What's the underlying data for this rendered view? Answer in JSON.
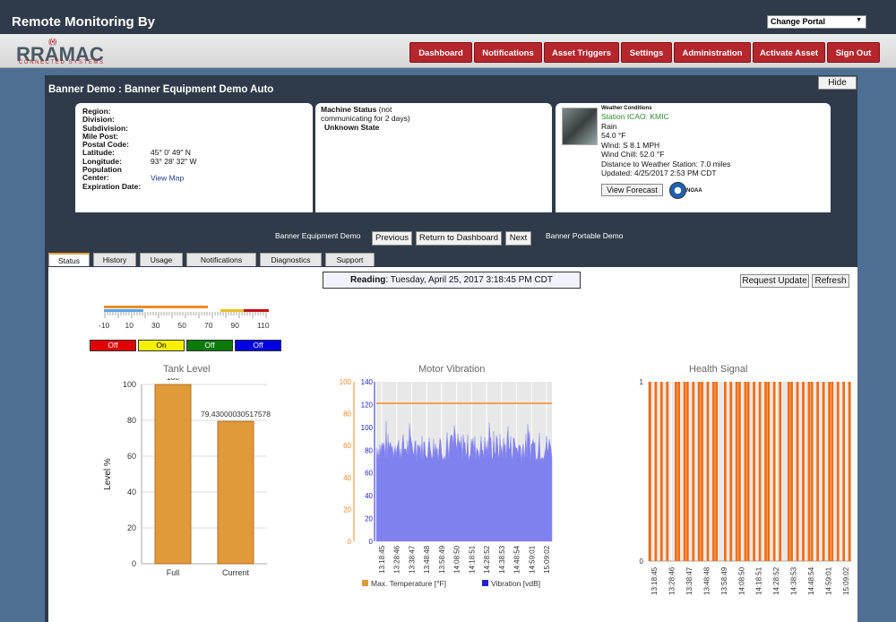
{
  "header": {
    "title": "Remote Monitoring By",
    "portal_select": "Change Portal"
  },
  "logo": {
    "name": "RRAMAC",
    "tagline": "CONNECTED SYSTEMS"
  },
  "nav": [
    {
      "label": "Dashboard"
    },
    {
      "label": "Notifications"
    },
    {
      "label": "Asset Triggers"
    },
    {
      "label": "Settings"
    },
    {
      "label": "Administration"
    },
    {
      "label": "Activate Asset"
    },
    {
      "label": "Sign Out"
    }
  ],
  "page": {
    "title": "Banner Demo : Banner Equipment Demo Auto",
    "hide": "Hide"
  },
  "location": {
    "fields": [
      {
        "label": "Region:",
        "value": ""
      },
      {
        "label": "Division:",
        "value": ""
      },
      {
        "label": "Subdivision:",
        "value": ""
      },
      {
        "label": "Mile Post:",
        "value": ""
      },
      {
        "label": "Postal Code:",
        "value": ""
      },
      {
        "label": "Latitude:",
        "value": "45° 0' 49\" N"
      },
      {
        "label": "Longitude:",
        "value": "93° 28' 32\" W"
      },
      {
        "label": "Population Center:",
        "value": "View Map"
      },
      {
        "label": "Expiration Date:",
        "value": ""
      }
    ]
  },
  "machine": {
    "label": "Machine Status",
    "note": "(not communicating for 2 days)",
    "state": "Unknown State"
  },
  "weather": {
    "heading": "Weather Conditions",
    "station": "Station ICAO: KMIC",
    "lines": [
      "Rain",
      "54.0 °F",
      "Wind: S 8.1 MPH",
      "Wind Chill: 52.0 °F",
      "Distance to Weather Station: 7.0 miles",
      "Updated: 4/25/2017 2:53 PM CDT"
    ],
    "forecast_btn": "View Forecast",
    "noaa": "NOAA"
  },
  "assetnav": {
    "prev_name": "Banner Equipment Demo",
    "previous": "Previous",
    "dashboard": "Return to Dashboard",
    "next": "Next",
    "next_name": "Banner Portable Demo"
  },
  "tabs": [
    {
      "label": "Status"
    },
    {
      "label": "History"
    },
    {
      "label": "Usage"
    },
    {
      "label": "Notifications"
    },
    {
      "label": "Diagnostics"
    },
    {
      "label": "Support"
    }
  ],
  "status": {
    "reading_label": "Reading",
    "reading_value": ": Tuesday, April 25, 2017 3:18:45 PM CDT",
    "request_update": "Request Update",
    "refresh": "Refresh",
    "scale_ticks": [
      "-10",
      "10",
      "30",
      "50",
      "70",
      "90",
      "110"
    ],
    "indicators": [
      {
        "label": "Off",
        "color": "#e00000",
        "text": "#fff"
      },
      {
        "label": "On",
        "color": "#f5f000",
        "text": "#000"
      },
      {
        "label": "Off",
        "color": "#0a7a0a",
        "text": "#fff"
      },
      {
        "label": "Off",
        "color": "#0000e0",
        "text": "#fff"
      }
    ]
  },
  "chart_data": [
    {
      "type": "bar",
      "title": "Tank Level",
      "categories": [
        "Full",
        "Current"
      ],
      "series": [
        {
          "name": "Level",
          "values": [
            100,
            79.43000030517578
          ]
        }
      ],
      "ylabel": "Level %",
      "ylim": [
        0,
        100
      ],
      "yticks": [
        0,
        20,
        40,
        60,
        80,
        100
      ],
      "color": "#e09a3a"
    },
    {
      "type": "area",
      "title": "Motor Vibration",
      "x": [
        "13:18:45",
        "13:28:46",
        "13:38:47",
        "13:48:48",
        "13:58:49",
        "14:08:50",
        "14:18:51",
        "14:28:52",
        "14:38:53",
        "14:48:54",
        "14:59:01",
        "15:09:02"
      ],
      "series": [
        {
          "name": "Max. Temperature [°F]",
          "axis": "left",
          "ylim": [
            0,
            100
          ],
          "yticks": [
            0,
            20,
            40,
            60,
            80,
            100
          ],
          "values": [
            100,
            100,
            100,
            100,
            100,
            100,
            100,
            100,
            100,
            100,
            100,
            100
          ],
          "color": "#f08a24"
        },
        {
          "name": "Vibration [vdB]",
          "axis": "right",
          "ylim": [
            0,
            140
          ],
          "yticks": [
            0,
            20,
            40,
            60,
            80,
            100,
            120,
            140
          ],
          "typical": 85,
          "color": "#8080ee"
        }
      ]
    },
    {
      "type": "bar",
      "title": "Health Signal",
      "x": [
        "13:18:45",
        "13:28:46",
        "13:38:47",
        "13:48:48",
        "13:58:49",
        "14:08:50",
        "14:18:51",
        "14:28:52",
        "14:38:53",
        "14:48:54",
        "14:59:01",
        "15:09:02"
      ],
      "ylim": [
        0,
        1
      ],
      "yticks": [
        0,
        1
      ],
      "pattern": [
        1,
        0,
        1,
        0,
        1,
        0,
        1,
        0,
        0,
        1,
        1,
        0,
        1,
        1,
        0,
        1,
        0,
        1,
        1,
        0,
        1,
        0,
        1,
        1,
        0,
        0,
        1,
        0,
        1,
        0,
        1,
        1,
        0,
        1,
        1,
        0,
        1,
        0,
        1,
        0,
        1,
        1,
        0,
        1,
        0,
        1,
        0,
        0,
        1,
        1,
        0,
        1,
        0,
        1,
        0,
        1,
        1,
        0,
        1,
        0,
        1,
        0,
        1,
        1,
        0,
        1,
        0,
        1,
        0,
        1
      ],
      "color": "#f26d10"
    }
  ]
}
